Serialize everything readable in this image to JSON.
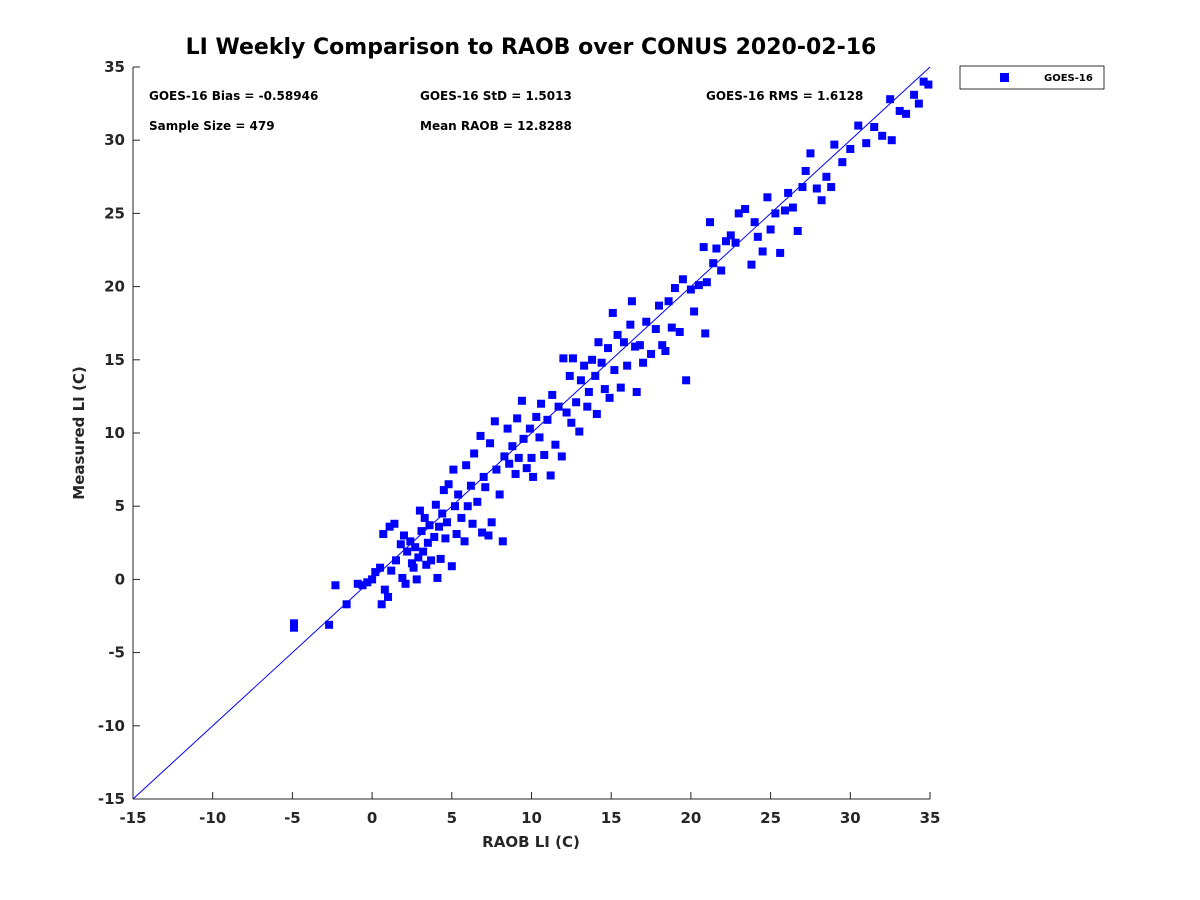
{
  "chart_data": {
    "type": "scatter",
    "title": "LI Weekly Comparison to RAOB over CONUS 2020-02-16",
    "xlabel": "RAOB LI (C)",
    "ylabel": "Measured LI (C)",
    "xlim": [
      -15,
      35
    ],
    "ylim": [
      -15,
      35
    ],
    "xticks": [
      "-15",
      "-10",
      "-5",
      "0",
      "5",
      "10",
      "15",
      "20",
      "25",
      "30",
      "35"
    ],
    "yticks": [
      "-15",
      "-10",
      "-5",
      "0",
      "5",
      "10",
      "15",
      "20",
      "25",
      "30",
      "35"
    ],
    "grid": false,
    "legend": {
      "position": "top-right",
      "entries": [
        "GOES-16"
      ]
    },
    "annotations": {
      "bias": "GOES-16 Bias = -0.58946",
      "std": "GOES-16 StD = 1.5013",
      "rms": "GOES-16 RMS = 1.6128",
      "sample": "Sample Size = 479",
      "mean": "Mean RAOB = 12.8288"
    },
    "reference_line": {
      "from": [
        -15,
        -15
      ],
      "to": [
        35,
        35
      ]
    },
    "series": [
      {
        "name": "GOES-16",
        "color": "#0000ff",
        "points": [
          [
            -4.9,
            -3.0
          ],
          [
            -4.9,
            -3.3
          ],
          [
            -2.7,
            -3.1
          ],
          [
            -2.3,
            -0.4
          ],
          [
            -1.6,
            -1.7
          ],
          [
            -0.9,
            -0.3
          ],
          [
            -0.6,
            -0.4
          ],
          [
            -0.3,
            -0.2
          ],
          [
            0,
            0
          ],
          [
            0.2,
            0.5
          ],
          [
            0.5,
            0.8
          ],
          [
            0.6,
            -1.7
          ],
          [
            0.7,
            3.1
          ],
          [
            0.8,
            -0.7
          ],
          [
            1.0,
            -1.2
          ],
          [
            1.1,
            3.6
          ],
          [
            1.2,
            0.6
          ],
          [
            1.4,
            3.8
          ],
          [
            1.5,
            1.3
          ],
          [
            1.8,
            2.4
          ],
          [
            1.9,
            0.1
          ],
          [
            2.0,
            3.0
          ],
          [
            2.1,
            -0.3
          ],
          [
            2.2,
            1.9
          ],
          [
            2.4,
            2.6
          ],
          [
            2.5,
            1.1
          ],
          [
            2.6,
            0.8
          ],
          [
            2.7,
            2.2
          ],
          [
            2.8,
            0
          ],
          [
            2.9,
            1.5
          ],
          [
            3.0,
            4.7
          ],
          [
            3.1,
            3.3
          ],
          [
            3.2,
            1.9
          ],
          [
            3.3,
            4.2
          ],
          [
            3.4,
            1.0
          ],
          [
            3.5,
            2.5
          ],
          [
            3.6,
            3.7
          ],
          [
            3.7,
            1.3
          ],
          [
            3.9,
            2.9
          ],
          [
            4.0,
            5.1
          ],
          [
            4.1,
            0.1
          ],
          [
            4.2,
            3.6
          ],
          [
            4.3,
            1.4
          ],
          [
            4.4,
            4.5
          ],
          [
            4.5,
            6.1
          ],
          [
            4.6,
            2.8
          ],
          [
            4.7,
            3.9
          ],
          [
            4.8,
            6.5
          ],
          [
            5.0,
            0.9
          ],
          [
            5.1,
            7.5
          ],
          [
            5.2,
            5.0
          ],
          [
            5.3,
            3.1
          ],
          [
            5.4,
            5.8
          ],
          [
            5.6,
            4.2
          ],
          [
            5.8,
            2.6
          ],
          [
            5.9,
            7.8
          ],
          [
            6.0,
            5.0
          ],
          [
            6.2,
            6.4
          ],
          [
            6.3,
            3.8
          ],
          [
            6.4,
            8.6
          ],
          [
            6.6,
            5.3
          ],
          [
            6.8,
            9.8
          ],
          [
            6.9,
            3.2
          ],
          [
            7.0,
            7.0
          ],
          [
            7.1,
            6.3
          ],
          [
            7.3,
            3.0
          ],
          [
            7.4,
            9.3
          ],
          [
            7.5,
            3.9
          ],
          [
            7.7,
            10.8
          ],
          [
            7.8,
            7.5
          ],
          [
            8.0,
            5.8
          ],
          [
            8.2,
            2.6
          ],
          [
            8.3,
            8.4
          ],
          [
            8.5,
            10.3
          ],
          [
            8.6,
            7.9
          ],
          [
            8.8,
            9.1
          ],
          [
            9.0,
            7.2
          ],
          [
            9.1,
            11.0
          ],
          [
            9.2,
            8.3
          ],
          [
            9.4,
            12.2
          ],
          [
            9.5,
            9.6
          ],
          [
            9.7,
            7.6
          ],
          [
            9.9,
            10.3
          ],
          [
            10.0,
            8.3
          ],
          [
            10.1,
            7.0
          ],
          [
            10.3,
            11.1
          ],
          [
            10.5,
            9.7
          ],
          [
            10.6,
            12.0
          ],
          [
            10.8,
            8.5
          ],
          [
            11.0,
            10.9
          ],
          [
            11.2,
            7.1
          ],
          [
            11.3,
            12.6
          ],
          [
            11.5,
            9.2
          ],
          [
            11.7,
            11.8
          ],
          [
            11.9,
            8.4
          ],
          [
            12.0,
            15.1
          ],
          [
            12.2,
            11.4
          ],
          [
            12.4,
            13.9
          ],
          [
            12.5,
            10.7
          ],
          [
            12.6,
            15.1
          ],
          [
            12.8,
            12.1
          ],
          [
            13.0,
            10.1
          ],
          [
            13.1,
            13.6
          ],
          [
            13.3,
            14.6
          ],
          [
            13.5,
            11.8
          ],
          [
            13.6,
            12.8
          ],
          [
            13.8,
            15.0
          ],
          [
            14.0,
            13.9
          ],
          [
            14.1,
            11.3
          ],
          [
            14.2,
            16.2
          ],
          [
            14.4,
            14.8
          ],
          [
            14.6,
            13.0
          ],
          [
            14.8,
            15.8
          ],
          [
            14.9,
            12.4
          ],
          [
            15.1,
            18.2
          ],
          [
            15.2,
            14.3
          ],
          [
            15.4,
            16.7
          ],
          [
            15.6,
            13.1
          ],
          [
            15.8,
            16.2
          ],
          [
            16.0,
            14.6
          ],
          [
            16.2,
            17.4
          ],
          [
            16.3,
            19.0
          ],
          [
            16.5,
            15.9
          ],
          [
            16.6,
            12.8
          ],
          [
            16.8,
            16.0
          ],
          [
            17.0,
            14.8
          ],
          [
            17.2,
            17.6
          ],
          [
            17.5,
            15.4
          ],
          [
            17.8,
            17.1
          ],
          [
            18.0,
            18.7
          ],
          [
            18.2,
            16.0
          ],
          [
            18.4,
            15.6
          ],
          [
            18.6,
            19.0
          ],
          [
            18.8,
            17.2
          ],
          [
            19.0,
            19.9
          ],
          [
            19.3,
            16.9
          ],
          [
            19.5,
            20.5
          ],
          [
            19.7,
            13.6
          ],
          [
            20.0,
            19.8
          ],
          [
            20.2,
            18.3
          ],
          [
            20.5,
            20.1
          ],
          [
            20.8,
            22.7
          ],
          [
            20.9,
            16.8
          ],
          [
            21.0,
            20.3
          ],
          [
            21.2,
            24.4
          ],
          [
            21.4,
            21.6
          ],
          [
            21.6,
            22.6
          ],
          [
            21.9,
            21.1
          ],
          [
            22.2,
            23.1
          ],
          [
            22.5,
            23.5
          ],
          [
            22.8,
            23.0
          ],
          [
            23.0,
            25.0
          ],
          [
            23.4,
            25.3
          ],
          [
            23.8,
            21.5
          ],
          [
            24.0,
            24.4
          ],
          [
            24.2,
            23.4
          ],
          [
            24.5,
            22.4
          ],
          [
            24.8,
            26.1
          ],
          [
            25.0,
            23.9
          ],
          [
            25.3,
            25.0
          ],
          [
            25.6,
            22.3
          ],
          [
            25.9,
            25.2
          ],
          [
            26.1,
            26.4
          ],
          [
            26.4,
            25.4
          ],
          [
            26.7,
            23.8
          ],
          [
            27.0,
            26.8
          ],
          [
            27.2,
            27.9
          ],
          [
            27.5,
            29.1
          ],
          [
            27.9,
            26.7
          ],
          [
            28.2,
            25.9
          ],
          [
            28.5,
            27.5
          ],
          [
            28.8,
            26.8
          ],
          [
            29.0,
            29.7
          ],
          [
            29.5,
            28.5
          ],
          [
            30.0,
            29.4
          ],
          [
            30.5,
            31.0
          ],
          [
            31.0,
            29.8
          ],
          [
            31.5,
            30.9
          ],
          [
            32.0,
            30.3
          ],
          [
            32.5,
            32.8
          ],
          [
            32.6,
            30.0
          ],
          [
            33.1,
            32.0
          ],
          [
            33.5,
            31.8
          ],
          [
            34.0,
            33.1
          ],
          [
            34.3,
            32.5
          ],
          [
            34.6,
            34.0
          ],
          [
            34.9,
            33.8
          ]
        ]
      }
    ]
  }
}
